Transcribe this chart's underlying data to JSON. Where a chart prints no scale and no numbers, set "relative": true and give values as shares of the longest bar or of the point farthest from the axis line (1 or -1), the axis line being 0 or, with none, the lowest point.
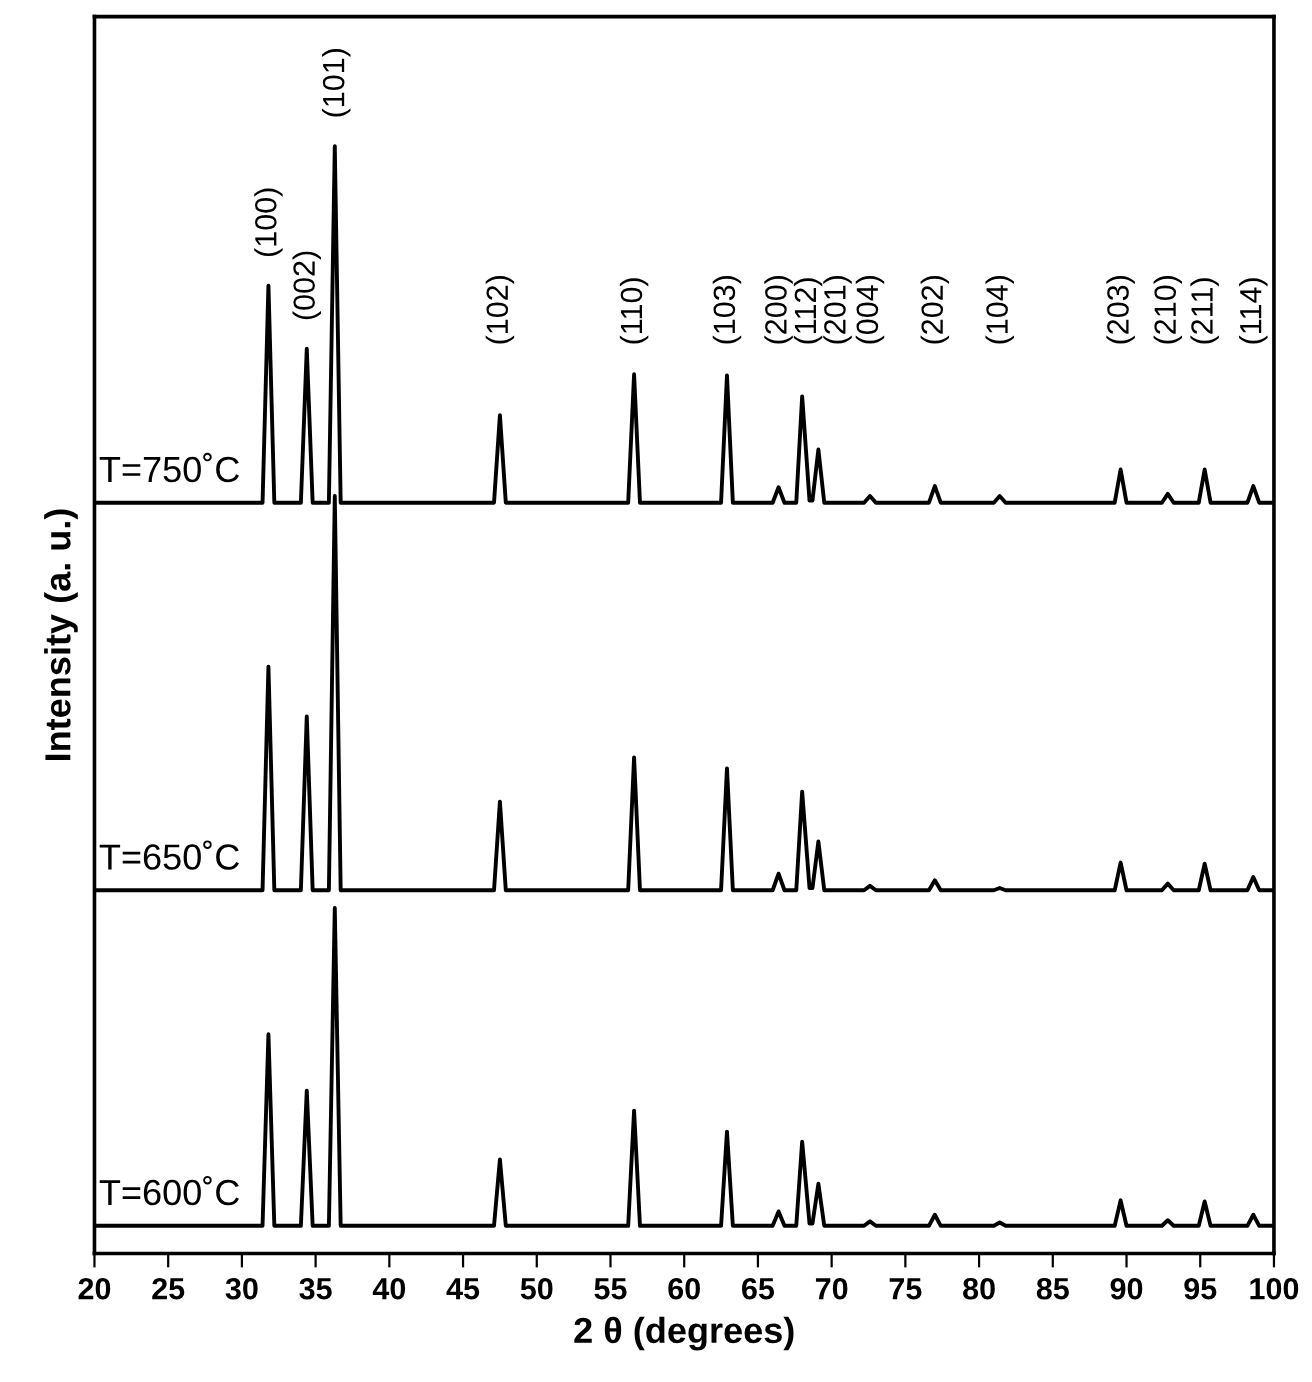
{
  "chart_data": {
    "type": "line",
    "relative": true,
    "xlabel": "2 θ (degrees)",
    "ylabel": "Intensity (a. u.)",
    "xlim": [
      20,
      100
    ],
    "xticks": [
      20,
      25,
      30,
      35,
      40,
      45,
      50,
      55,
      60,
      65,
      70,
      75,
      80,
      85,
      90,
      95,
      100
    ],
    "tick_labels": "x",
    "grid": false,
    "legend": false,
    "marker": "none",
    "line_style": "solid",
    "x": [
      20,
      31.4,
      31.8,
      32.2,
      34.0,
      34.4,
      34.8,
      35.9,
      36.3,
      36.7,
      47.1,
      47.5,
      47.9,
      56.2,
      56.6,
      57.0,
      62.5,
      62.9,
      63.3,
      66.0,
      66.4,
      66.8,
      67.6,
      68.0,
      68.5,
      68.7,
      69.1,
      69.5,
      72.2,
      72.6,
      73.0,
      76.6,
      77.0,
      77.4,
      81.0,
      81.4,
      81.8,
      89.2,
      89.6,
      90.0,
      92.4,
      92.8,
      93.2,
      94.9,
      95.3,
      95.7,
      98.2,
      98.6,
      99.0,
      100
    ],
    "series": [
      {
        "name": "T=750˚C",
        "color": "#000000",
        "values": [
          0.678,
          0.678,
          0.874,
          0.678,
          0.678,
          0.817,
          0.678,
          0.678,
          1.0,
          0.678,
          0.678,
          0.757,
          0.678,
          0.678,
          0.794,
          0.678,
          0.678,
          0.793,
          0.678,
          0.678,
          0.692,
          0.678,
          0.678,
          0.774,
          0.68,
          0.68,
          0.726,
          0.678,
          0.678,
          0.684,
          0.678,
          0.678,
          0.693,
          0.678,
          0.678,
          0.684,
          0.678,
          0.678,
          0.708,
          0.678,
          0.678,
          0.686,
          0.678,
          0.678,
          0.708,
          0.678,
          0.678,
          0.693,
          0.678,
          0.678
        ]
      },
      {
        "name": "T=650˚C",
        "color": "#000000",
        "values": [
          0.328,
          0.328,
          0.53,
          0.328,
          0.328,
          0.485,
          0.328,
          0.328,
          0.684,
          0.328,
          0.328,
          0.408,
          0.328,
          0.328,
          0.448,
          0.328,
          0.328,
          0.438,
          0.328,
          0.328,
          0.343,
          0.328,
          0.328,
          0.417,
          0.33,
          0.33,
          0.372,
          0.328,
          0.328,
          0.332,
          0.328,
          0.328,
          0.337,
          0.328,
          0.328,
          0.33,
          0.328,
          0.328,
          0.353,
          0.328,
          0.328,
          0.334,
          0.328,
          0.328,
          0.352,
          0.328,
          0.328,
          0.34,
          0.328,
          0.328
        ]
      },
      {
        "name": "T=600˚C",
        "color": "#000000",
        "values": [
          0.025,
          0.025,
          0.198,
          0.025,
          0.025,
          0.147,
          0.025,
          0.025,
          0.312,
          0.025,
          0.025,
          0.085,
          0.025,
          0.025,
          0.129,
          0.025,
          0.025,
          0.11,
          0.025,
          0.025,
          0.038,
          0.025,
          0.025,
          0.101,
          0.027,
          0.027,
          0.063,
          0.025,
          0.025,
          0.029,
          0.025,
          0.025,
          0.035,
          0.025,
          0.025,
          0.028,
          0.025,
          0.025,
          0.048,
          0.025,
          0.025,
          0.03,
          0.025,
          0.025,
          0.047,
          0.025,
          0.025,
          0.035,
          0.025,
          0.025
        ]
      }
    ],
    "annotations": [
      "(100)",
      "(002)",
      "(101)",
      "(102)",
      "(110)",
      "(103)",
      "(200)",
      "(112)",
      "(201)",
      "(004)",
      "(202)",
      "(104)",
      "(203)",
      "(210)",
      "(211)",
      "(114)"
    ]
  }
}
